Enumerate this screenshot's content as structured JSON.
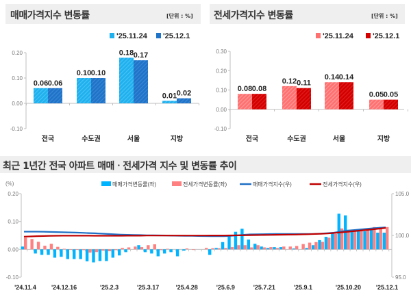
{
  "sale_panel": {
    "title": "매매가격지수 변동률",
    "unit": "[단위 : %]"
  },
  "jeonse_panel": {
    "title": "전세가격지수 변동률",
    "unit": "[단위 : %]"
  },
  "trend_panel": {
    "title": "최근 1년간 전국 아파트 매매ㆍ전세가격 지수 및 변동률 추이"
  },
  "colors": {
    "sale_prev": "#1fb0ee",
    "sale_curr": "#1f73c8",
    "jeonse_prev": "#ff7070",
    "jeonse_curr": "#d40000",
    "trend_sale_bar": "#00b4ff",
    "trend_jeonse_bar": "#ff8080",
    "trend_sale_line": "#1f6fc5",
    "trend_jeonse_line": "#c00000",
    "band": "#efefef"
  },
  "chart_data": [
    {
      "type": "bar",
      "categories": [
        "전국",
        "수도권",
        "서울",
        "지방"
      ],
      "series": [
        {
          "name": "'25.11.24",
          "values": [
            0.06,
            0.1,
            0.18,
            0.01
          ],
          "labels": [
            "0.06",
            "0.10",
            "0.18",
            "0.01"
          ]
        },
        {
          "name": "'25.12.1",
          "values": [
            0.06,
            0.1,
            0.17,
            0.02
          ],
          "labels": [
            "0.06",
            "0.10",
            "0.17",
            "0.02"
          ]
        }
      ],
      "ylim": [
        -0.1,
        0.2
      ],
      "yticks": [
        0.2,
        0.1,
        0.0,
        -0.1
      ],
      "ytick_labels": [
        "0.20",
        "0.10",
        "0.00",
        "-0.10"
      ],
      "legend": "top-right",
      "grid": false
    },
    {
      "type": "bar",
      "categories": [
        "전국",
        "수도권",
        "서울",
        "지방"
      ],
      "series": [
        {
          "name": "'25.11.24",
          "values": [
            0.08,
            0.12,
            0.14,
            0.05
          ],
          "labels": [
            "0.08",
            "0.12",
            "0.14",
            "0.05"
          ]
        },
        {
          "name": "'25.12.1",
          "values": [
            0.08,
            0.11,
            0.14,
            0.05
          ],
          "labels": [
            "0.08",
            "0.11",
            "0.14",
            "0.05"
          ]
        }
      ],
      "ylim": [
        -0.1,
        0.3
      ],
      "yticks": [
        0.3,
        0.2,
        0.1,
        0.0,
        -0.1
      ],
      "ytick_labels": [
        "0.30",
        "0.20",
        "0.10",
        "0.00",
        "-0.10"
      ],
      "legend": "top-right",
      "grid": false
    },
    {
      "type": "bar+line",
      "ylabel_left": "(%)",
      "ylim_left": [
        -0.1,
        0.2
      ],
      "yticks_left": [
        0.2,
        0.1,
        0.0,
        -0.1
      ],
      "ytick_labels_left": [
        "0.20",
        "0.10",
        "0.00",
        "-0.10"
      ],
      "ylim_right": [
        95.0,
        105.0
      ],
      "yticks_right": [
        105.0,
        100.0,
        95.0
      ],
      "ytick_labels_right": [
        "105.0",
        "100.0",
        "95.0"
      ],
      "legend": "top",
      "grid": false,
      "x": [
        "2024-11-04",
        "2024-11-11",
        "2024-11-18",
        "2024-11-25",
        "2024-12-02",
        "2024-12-09",
        "2024-12-16",
        "2024-12-23",
        "2024-12-30",
        "2025-01-06",
        "2025-01-13",
        "2025-01-20",
        "2025-01-27",
        "2025-02-03",
        "2025-02-10",
        "2025-02-17",
        "2025-02-24",
        "2025-03-03",
        "2025-03-10",
        "2025-03-17",
        "2025-03-24",
        "2025-03-31",
        "2025-04-07",
        "2025-04-14",
        "2025-04-21",
        "2025-04-28",
        "2025-05-05",
        "2025-05-12",
        "2025-05-19",
        "2025-05-26",
        "2025-06-02",
        "2025-06-09",
        "2025-06-16",
        "2025-06-23",
        "2025-06-30",
        "2025-07-07",
        "2025-07-14",
        "2025-07-21",
        "2025-07-28",
        "2025-08-04",
        "2025-08-11",
        "2025-08-18",
        "2025-08-25",
        "2025-09-01",
        "2025-09-08",
        "2025-09-15",
        "2025-09-22",
        "2025-09-29",
        "2025-10-06",
        "2025-10-13",
        "2025-10-20",
        "2025-10-27",
        "2025-11-03",
        "2025-11-10",
        "2025-11-17",
        "2025-11-24",
        "2025-12-01"
      ],
      "x_ticks": [
        {
          "date": "2024-11-04",
          "label": "'24.11.4"
        },
        {
          "date": "2024-12-16",
          "label": "'24.12.16"
        },
        {
          "date": "2025-02-03",
          "label": "'25.2.3"
        },
        {
          "date": "2025-03-17",
          "label": "'25.3.17"
        },
        {
          "date": "2025-04-28",
          "label": "'25.4.28"
        },
        {
          "date": "2025-06-09",
          "label": "'25.6.9"
        },
        {
          "date": "2025-07-21",
          "label": "'25.7.21"
        },
        {
          "date": "2025-09-01",
          "label": "'25.9.1"
        },
        {
          "date": "2025-10-20",
          "label": "'25.10.20"
        },
        {
          "date": "2025-12-01",
          "label": "'25.12.1"
        }
      ],
      "series": [
        {
          "name": "매매가격변동률(좌)",
          "kind": "bar",
          "axis": "left",
          "values": [
            0.01,
            0,
            -0.015,
            -0.02,
            -0.02,
            -0.03,
            -0.027,
            -0.035,
            -0.035,
            -0.035,
            -0.043,
            -0.047,
            -0.042,
            -0.042,
            -0.03,
            -0.022,
            -0.01,
            0,
            0.015,
            -0.01,
            -0.015,
            -0.025,
            -0.015,
            -0.01,
            -0.025,
            -0.005,
            0,
            0,
            0,
            -0.02,
            0.005,
            0.026,
            0.05,
            0.063,
            0.074,
            0.035,
            0.02,
            0.01,
            0.005,
            0.008,
            0.008,
            0,
            0.003,
            0,
            0.005,
            0.015,
            0.033,
            0.045,
            0.058,
            0.128,
            0.122,
            0.065,
            0.07,
            0.065,
            0.07,
            0.06,
            0.06
          ]
        },
        {
          "name": "전세가격변동률(좌)",
          "kind": "bar",
          "axis": "left",
          "values": [
            0.042,
            0.037,
            0.027,
            0.013,
            0.02,
            0.009,
            0.002,
            -0.002,
            -0.002,
            -0.003,
            -0.012,
            -0.01,
            -0.005,
            -0.007,
            -0.003,
            0.005,
            0.007,
            0.01,
            0.008,
            0.015,
            0.018,
            -0.003,
            0.002,
            0,
            0,
            0.003,
            -0.002,
            0,
            0.005,
            0.004,
            0.004,
            0.005,
            0.008,
            0.015,
            0.015,
            0.007,
            0.015,
            0.007,
            0.008,
            0.005,
            0.01,
            0.01,
            0.012,
            0.019,
            0.024,
            0.026,
            0.027,
            0.042,
            0.055,
            0.075,
            0.07,
            0.07,
            0.072,
            0.075,
            0.08,
            0.08,
            0.08
          ]
        },
        {
          "name": "매매가격지수(우)",
          "kind": "line",
          "axis": "right",
          "values": [
            100.45,
            100.45,
            100.45,
            100.44,
            100.42,
            100.4,
            100.38,
            100.36,
            100.34,
            100.31,
            100.28,
            100.25,
            100.21,
            100.17,
            100.13,
            100.1,
            100.07,
            100.05,
            100.04,
            100.02,
            100.01,
            100.0,
            99.99,
            99.97,
            99.96,
            99.95,
            99.94,
            99.93,
            99.92,
            99.91,
            99.9,
            99.9,
            99.95,
            100.0,
            100.07,
            100.12,
            100.14,
            100.15,
            100.16,
            100.17,
            100.17,
            100.17,
            100.18,
            100.18,
            100.18,
            100.19,
            100.22,
            100.27,
            100.33,
            100.45,
            100.57,
            100.64,
            100.71,
            100.78,
            100.85,
            100.91,
            100.97
          ]
        },
        {
          "name": "전세가격지수(우)",
          "kind": "line",
          "axis": "right",
          "values": [
            99.85,
            99.88,
            99.91,
            99.93,
            99.95,
            99.96,
            99.97,
            99.97,
            99.97,
            99.97,
            99.97,
            99.96,
            99.96,
            99.96,
            99.96,
            99.96,
            99.97,
            99.97,
            99.97,
            99.98,
            99.98,
            99.98,
            99.98,
            99.98,
            99.98,
            99.98,
            99.98,
            99.98,
            99.98,
            99.99,
            99.99,
            99.99,
            100.0,
            100.01,
            100.02,
            100.03,
            100.04,
            100.05,
            100.06,
            100.07,
            100.08,
            100.09,
            100.1,
            100.12,
            100.14,
            100.17,
            100.2,
            100.23,
            100.29,
            100.36,
            100.43,
            100.5,
            100.57,
            100.65,
            100.73,
            100.81,
            100.89
          ]
        }
      ]
    }
  ]
}
